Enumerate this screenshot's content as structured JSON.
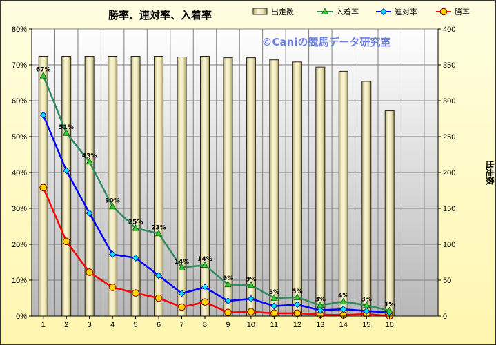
{
  "colors": {
    "bar_fill": "#ede6b0",
    "bar_stroke": "#222222",
    "entry_line": "#2f8a5c",
    "entry_marker": "#33cc33",
    "quinella_line": "#0000ff",
    "quinella_marker": "#00e0ff",
    "win_line": "#ff0000",
    "win_marker": "#ffd700"
  },
  "chart_data": {
    "type": "bar",
    "title": "勝率、連対率、入着率",
    "watermark": "©Caniの競馬データ研究室",
    "categories": [
      "1",
      "2",
      "3",
      "4",
      "5",
      "6",
      "7",
      "8",
      "9",
      "10",
      "11",
      "12",
      "13",
      "14",
      "15",
      "16"
    ],
    "y_left": {
      "ylim": [
        0,
        80
      ],
      "ticks": [
        "0%",
        "10%",
        "20%",
        "30%",
        "40%",
        "50%",
        "60%",
        "70%",
        "80%"
      ],
      "tick_values": [
        0,
        10,
        20,
        30,
        40,
        50,
        60,
        70,
        80
      ]
    },
    "y_right": {
      "label": "出走数",
      "ylim": [
        0,
        400
      ],
      "ticks": [
        "0",
        "50",
        "100",
        "150",
        "200",
        "250",
        "300",
        "350",
        "400"
      ],
      "tick_values": [
        0,
        50,
        100,
        150,
        200,
        250,
        300,
        350,
        400
      ]
    },
    "grid": true,
    "legend_position": "top",
    "series": [
      {
        "name": "出走数",
        "type": "bar",
        "axis": "right",
        "values": [
          362,
          362,
          362,
          362,
          362,
          362,
          361,
          362,
          360,
          360,
          357,
          354,
          347,
          341,
          327,
          286
        ]
      },
      {
        "name": "入着率",
        "type": "line",
        "axis": "left",
        "marker": "triangle",
        "values": [
          67,
          51,
          43,
          30.5,
          24.5,
          23,
          13.5,
          14.2,
          8.8,
          8.6,
          5,
          5.2,
          3,
          4,
          3,
          1.5
        ],
        "labels": [
          "67%",
          "51%",
          "43%",
          "30%",
          "25%",
          "23%",
          "14%",
          "14%",
          "9%",
          "9%",
          "5%",
          "5%",
          "3%",
          "4%",
          "3%",
          "1%"
        ]
      },
      {
        "name": "連対率",
        "type": "line",
        "axis": "left",
        "marker": "diamond",
        "values": [
          56,
          40.5,
          28.7,
          17.2,
          16.2,
          11.3,
          6.3,
          8,
          4.2,
          4.8,
          2.8,
          3.2,
          1.6,
          1.9,
          1.4,
          1
        ]
      },
      {
        "name": "勝率",
        "type": "line",
        "axis": "left",
        "marker": "circle",
        "values": [
          35.8,
          20.8,
          12.2,
          8,
          6.4,
          5,
          2.5,
          3.9,
          1,
          1.2,
          0.8,
          0.8,
          0.4,
          0.3,
          0.6,
          0
        ]
      }
    ]
  }
}
